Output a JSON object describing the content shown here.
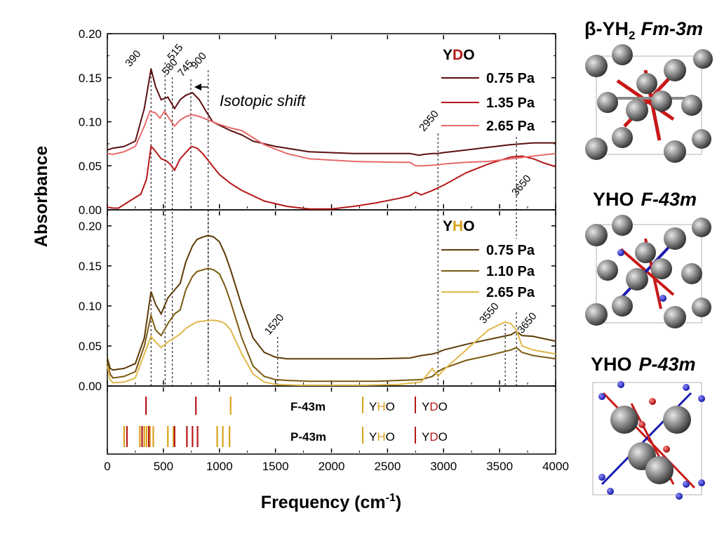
{
  "chart_data": [
    {
      "type": "line",
      "panel": "top",
      "legend_title": [
        "Y",
        "D",
        "O"
      ],
      "xlim": [
        0,
        4000
      ],
      "ylim": [
        0,
        0.2
      ],
      "yticks": [
        "0.00",
        "0.05",
        "0.10",
        "0.15",
        "0.20"
      ],
      "series": [
        {
          "name": "0.75 Pa",
          "color": "#5c0f0f",
          "x": [
            0,
            50,
            150,
            250,
            330,
            390,
            430,
            480,
            540,
            600,
            650,
            700,
            760,
            820,
            880,
            940,
            1000,
            1100,
            1200,
            1300,
            1500,
            1800,
            2200,
            2600,
            2700,
            2780,
            2830,
            2900,
            2950,
            3000,
            3200,
            3400,
            3600,
            3800,
            4000
          ],
          "y": [
            0.068,
            0.07,
            0.072,
            0.078,
            0.115,
            0.16,
            0.14,
            0.125,
            0.128,
            0.115,
            0.125,
            0.13,
            0.133,
            0.125,
            0.112,
            0.1,
            0.096,
            0.09,
            0.085,
            0.078,
            0.072,
            0.066,
            0.064,
            0.064,
            0.064,
            0.062,
            0.063,
            0.064,
            0.064,
            0.065,
            0.068,
            0.071,
            0.074,
            0.076,
            0.076
          ]
        },
        {
          "name": "1.35 Pa",
          "color": "#b51818",
          "x": [
            0,
            50,
            100,
            200,
            300,
            350,
            390,
            420,
            480,
            520,
            560,
            600,
            650,
            700,
            750,
            800,
            850,
            900,
            1000,
            1100,
            1200,
            1400,
            1600,
            1800,
            2000,
            2200,
            2400,
            2600,
            2700,
            2750,
            2800,
            2900,
            3000,
            3200,
            3400,
            3600,
            3700,
            3800,
            3900,
            4000
          ],
          "y": [
            0.003,
            0.002,
            0.002,
            0.01,
            0.018,
            0.035,
            0.072,
            0.068,
            0.058,
            0.056,
            0.052,
            0.045,
            0.058,
            0.065,
            0.072,
            0.07,
            0.064,
            0.056,
            0.04,
            0.03,
            0.022,
            0.01,
            0.004,
            0.001,
            0.001,
            0.004,
            0.008,
            0.013,
            0.016,
            0.02,
            0.017,
            0.022,
            0.028,
            0.042,
            0.052,
            0.06,
            0.061,
            0.058,
            0.053,
            0.049
          ]
        },
        {
          "name": "2.65 Pa",
          "color": "#e86a6a",
          "x": [
            0,
            50,
            150,
            250,
            330,
            380,
            430,
            470,
            510,
            550,
            600,
            650,
            700,
            760,
            820,
            880,
            940,
            1000,
            1100,
            1200,
            1300,
            1400,
            1600,
            1800,
            2200,
            2600,
            2700,
            2750,
            2800,
            2950,
            3000,
            3200,
            3400,
            3600,
            3800,
            4000
          ],
          "y": [
            0.064,
            0.063,
            0.066,
            0.072,
            0.095,
            0.112,
            0.11,
            0.104,
            0.112,
            0.104,
            0.095,
            0.102,
            0.106,
            0.108,
            0.106,
            0.103,
            0.1,
            0.097,
            0.093,
            0.09,
            0.082,
            0.074,
            0.064,
            0.058,
            0.055,
            0.054,
            0.054,
            0.05,
            0.05,
            0.051,
            0.052,
            0.054,
            0.055,
            0.058,
            0.061,
            0.064
          ]
        }
      ],
      "annotations": [
        "390",
        "515",
        "580",
        "745",
        "900",
        "2950",
        "3650"
      ],
      "annotation_x": [
        390,
        515,
        580,
        745,
        900,
        2950,
        3650
      ],
      "arrow_label": "Isotopic shift"
    },
    {
      "type": "line",
      "panel": "middle",
      "legend_title": [
        "Y",
        "H",
        "O"
      ],
      "xlim": [
        0,
        4000
      ],
      "ylim": [
        0,
        0.22
      ],
      "yticks": [
        "0.00",
        "0.05",
        "0.10",
        "0.15",
        "0.20"
      ],
      "series": [
        {
          "name": "0.75 Pa",
          "color": "#5c3a06",
          "x": [
            0,
            25,
            50,
            150,
            250,
            330,
            390,
            430,
            480,
            540,
            600,
            650,
            700,
            760,
            800,
            850,
            900,
            950,
            1000,
            1050,
            1100,
            1200,
            1300,
            1400,
            1500,
            1600,
            1700,
            2000,
            2400,
            2700,
            2800,
            2900,
            2950,
            3000,
            3200,
            3400,
            3600,
            3650,
            3700,
            3800,
            4000
          ],
          "y": [
            0.035,
            0.022,
            0.02,
            0.022,
            0.028,
            0.06,
            0.118,
            0.102,
            0.09,
            0.11,
            0.12,
            0.128,
            0.155,
            0.175,
            0.183,
            0.186,
            0.188,
            0.186,
            0.18,
            0.165,
            0.145,
            0.1,
            0.06,
            0.042,
            0.036,
            0.034,
            0.034,
            0.034,
            0.034,
            0.035,
            0.038,
            0.04,
            0.042,
            0.045,
            0.052,
            0.058,
            0.064,
            0.068,
            0.063,
            0.062,
            0.056
          ]
        },
        {
          "name": "1.10 Pa",
          "color": "#7a5a10",
          "x": [
            0,
            25,
            50,
            150,
            250,
            330,
            390,
            430,
            480,
            540,
            600,
            650,
            700,
            760,
            800,
            850,
            900,
            950,
            1000,
            1050,
            1100,
            1200,
            1300,
            1400,
            1500,
            1600,
            1800,
            2000,
            2400,
            2800,
            2900,
            2950,
            3000,
            3200,
            3400,
            3600,
            3650,
            3700,
            3800,
            4000
          ],
          "y": [
            0.03,
            0.015,
            0.01,
            0.012,
            0.018,
            0.05,
            0.088,
            0.07,
            0.063,
            0.078,
            0.09,
            0.095,
            0.12,
            0.137,
            0.143,
            0.145,
            0.147,
            0.145,
            0.14,
            0.125,
            0.105,
            0.06,
            0.025,
            0.012,
            0.008,
            0.007,
            0.006,
            0.006,
            0.006,
            0.008,
            0.012,
            0.018,
            0.022,
            0.032,
            0.038,
            0.045,
            0.048,
            0.042,
            0.038,
            0.034
          ]
        },
        {
          "name": "2.65 Pa",
          "color": "#e0b84a",
          "x": [
            0,
            25,
            50,
            150,
            250,
            330,
            390,
            430,
            480,
            540,
            600,
            650,
            700,
            760,
            800,
            850,
            900,
            950,
            1000,
            1050,
            1100,
            1200,
            1300,
            1400,
            1500,
            1700,
            2000,
            2300,
            2600,
            2800,
            2900,
            2950,
            3000,
            3200,
            3400,
            3550,
            3600,
            3650,
            3700,
            3800,
            4000
          ],
          "y": [
            0.025,
            0.008,
            0.004,
            0.005,
            0.01,
            0.04,
            0.062,
            0.055,
            0.048,
            0.055,
            0.06,
            0.065,
            0.072,
            0.077,
            0.08,
            0.081,
            0.082,
            0.082,
            0.081,
            0.078,
            0.07,
            0.04,
            0.015,
            0.005,
            0.002,
            0.001,
            0.001,
            0.001,
            0.002,
            0.005,
            0.022,
            0.012,
            0.02,
            0.045,
            0.07,
            0.08,
            0.078,
            0.07,
            0.05,
            0.045,
            0.04
          ]
        }
      ],
      "annotations": [
        "1520",
        "3550",
        "3650"
      ],
      "annotation_x": [
        1520,
        3550,
        3650
      ]
    },
    {
      "type": "scatter",
      "panel": "bottom",
      "rows": [
        {
          "label": "F-43m",
          "yho": [
            1100
          ],
          "ydo": [
            345,
            790
          ]
        },
        {
          "label": "P-43m",
          "yho": [
            150,
            290,
            330,
            350,
            380,
            410,
            540,
            590,
            980,
            1030,
            1090
          ],
          "ydo": [
            175,
            310,
            370,
            600,
            710,
            760,
            805
          ]
        }
      ],
      "legend_yho": [
        "Y",
        "H",
        "O"
      ],
      "legend_ydo": [
        "Y",
        "D",
        "O"
      ],
      "xticks": [
        "0",
        "500",
        "1000",
        "1500",
        "2000",
        "2500",
        "3000",
        "3500",
        "4000"
      ],
      "xlabel_main": "Frequency (cm",
      "xlabel_sup": "-1",
      "xlabel_end": ")",
      "ylabel": "Absorbance"
    }
  ],
  "colors": {
    "ydo": "#b51818",
    "yho": "#d9a21c",
    "axis": "#000000"
  },
  "structures": [
    {
      "title_a": "β-YH",
      "title_sub": "2",
      "title_b": "Fm-3m"
    },
    {
      "title_a": "YHO",
      "title_b": "F-43m"
    },
    {
      "title_a": "YHO",
      "title_b": "P-43m"
    }
  ]
}
